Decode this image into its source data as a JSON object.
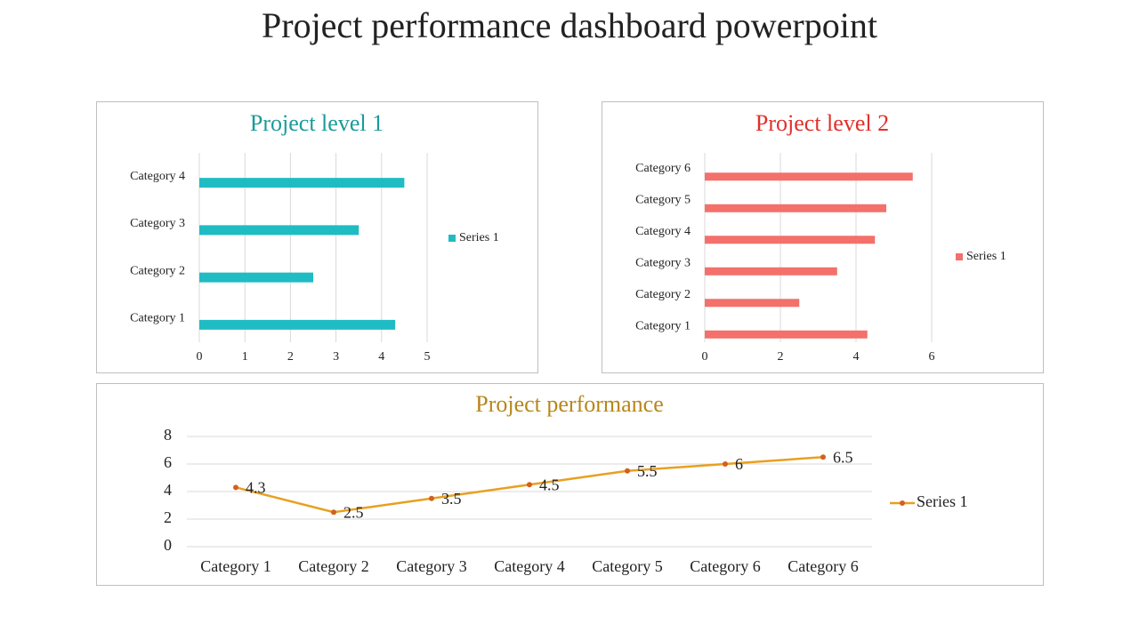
{
  "title": "Project performance dashboard powerpoint",
  "chart_data": [
    {
      "type": "hbar",
      "title": "Project level 1",
      "title_color": "#1a9a9a",
      "categories": [
        "Category 1",
        "Category 2",
        "Category 3",
        "Category 4"
      ],
      "series": [
        {
          "name": "Series 1",
          "color": "#1fbcc4",
          "values": [
            4.3,
            2.5,
            3.5,
            4.5
          ]
        }
      ],
      "xlim": [
        0,
        5
      ],
      "xticks": [
        0,
        1,
        2,
        3,
        4,
        5
      ],
      "grid": true,
      "legend": "right"
    },
    {
      "type": "hbar",
      "title": "Project level 2",
      "title_color": "#e0302a",
      "categories": [
        "Category 1",
        "Category 2",
        "Category 3",
        "Category 4",
        "Category 5",
        "Category 6"
      ],
      "series": [
        {
          "name": "Series 1",
          "color": "#f4706a",
          "values": [
            4.3,
            2.5,
            3.5,
            4.5,
            4.8,
            5.5
          ]
        }
      ],
      "xlim": [
        0,
        6
      ],
      "xticks": [
        0,
        2,
        4,
        6
      ],
      "grid": true,
      "legend": "right"
    },
    {
      "type": "line",
      "title": "Project performance",
      "title_color": "#b8861a",
      "categories": [
        "Category 1",
        "Category 2",
        "Category 3",
        "Category 4",
        "Category 5",
        "Category 6",
        "Category 6"
      ],
      "series": [
        {
          "name": "Series 1",
          "color": "#e8a020",
          "marker_color": "#d2601e",
          "values": [
            4.3,
            2.5,
            3.5,
            4.5,
            5.5,
            6,
            6.5
          ]
        }
      ],
      "ylim": [
        0,
        8
      ],
      "yticks": [
        0,
        2,
        4,
        6,
        8
      ],
      "grid": true,
      "legend": "right",
      "data_labels": true
    }
  ]
}
